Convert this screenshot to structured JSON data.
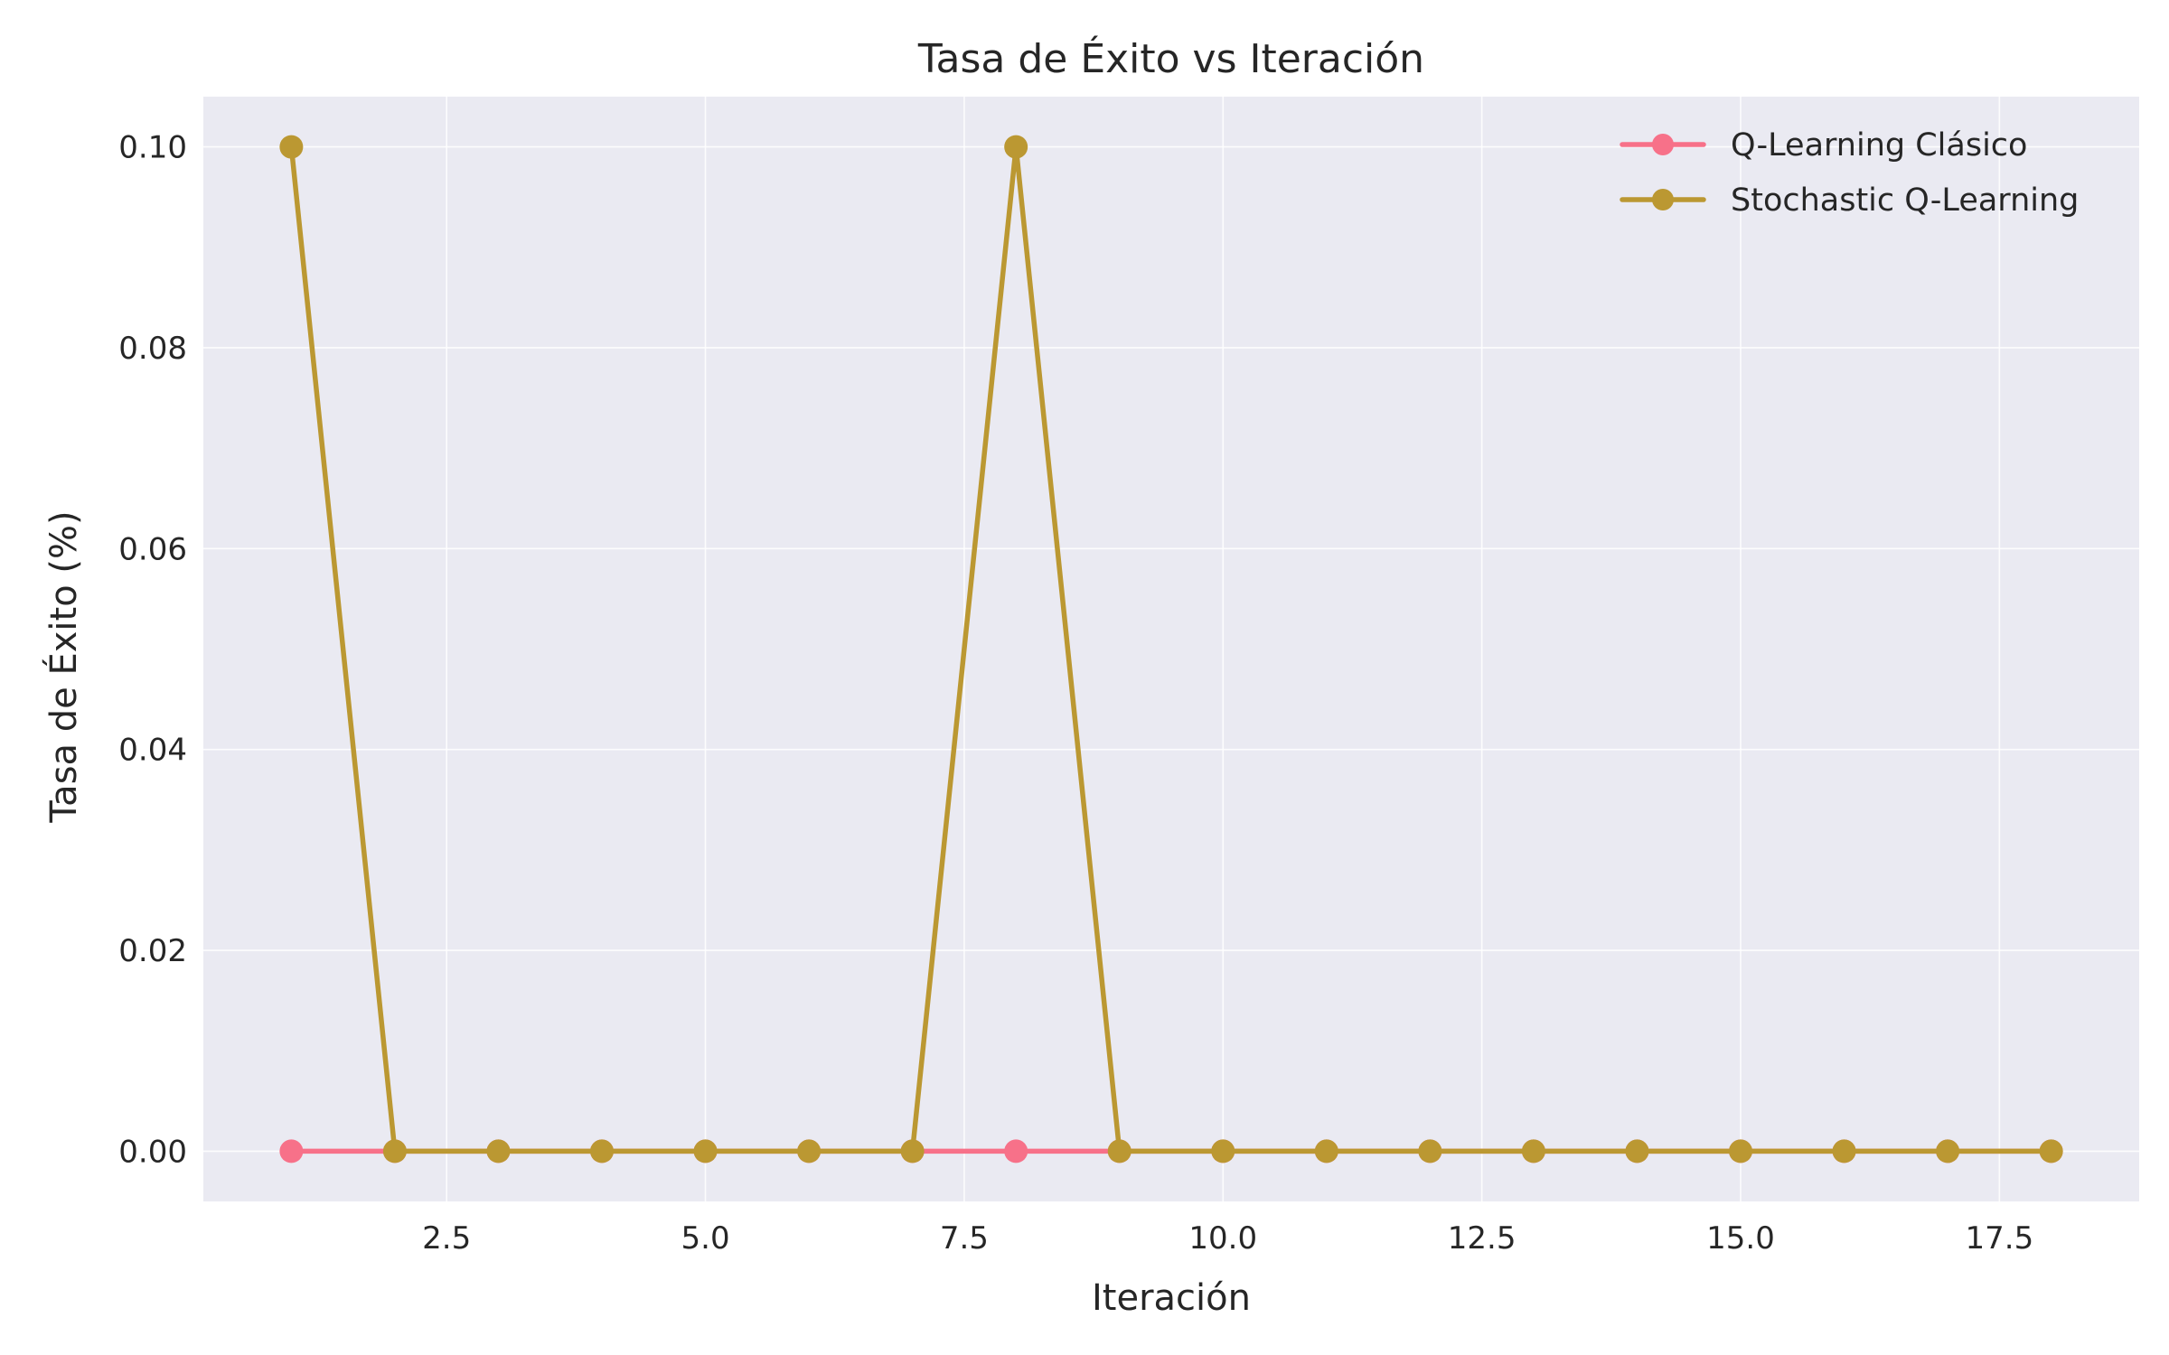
{
  "chart_data": {
    "type": "line",
    "title": "Tasa de Éxito vs Iteración",
    "xlabel": "Iteración",
    "ylabel": "Tasa de Éxito (%)",
    "x": [
      1,
      2,
      3,
      4,
      5,
      6,
      7,
      8,
      9,
      10,
      11,
      12,
      13,
      14,
      15,
      16,
      17,
      18
    ],
    "xlim": [
      0.15,
      18.85
    ],
    "ylim": [
      -0.005,
      0.105
    ],
    "xticks": [
      2.5,
      5.0,
      7.5,
      10.0,
      12.5,
      15.0,
      17.5
    ],
    "xtick_labels": [
      "2.5",
      "5.0",
      "7.5",
      "10.0",
      "12.5",
      "15.0",
      "17.5"
    ],
    "yticks": [
      0.0,
      0.02,
      0.04,
      0.06,
      0.08,
      0.1
    ],
    "ytick_labels": [
      "0.00",
      "0.02",
      "0.04",
      "0.06",
      "0.08",
      "0.10"
    ],
    "grid": true,
    "legend_position": "top-right",
    "background_color": "#eaeaf2",
    "series": [
      {
        "name": "Q-Learning Clásico",
        "color": "#f77189",
        "values": [
          0,
          0,
          0,
          0,
          0,
          0,
          0,
          0,
          0,
          0,
          0,
          0,
          0,
          0,
          0,
          0,
          0,
          0
        ]
      },
      {
        "name": "Stochastic Q-Learning",
        "color": "#bb9832",
        "values": [
          0.1,
          0,
          0,
          0,
          0,
          0,
          0,
          0.1,
          0,
          0,
          0,
          0,
          0,
          0,
          0,
          0,
          0,
          0
        ]
      }
    ]
  }
}
